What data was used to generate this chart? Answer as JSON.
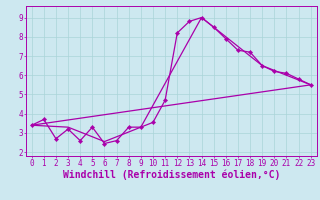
{
  "xlabel": "Windchill (Refroidissement éolien,°C)",
  "bg_color": "#cde8f0",
  "line_color": "#aa00aa",
  "xlim": [
    -0.5,
    23.5
  ],
  "ylim": [
    1.8,
    9.6
  ],
  "xticks": [
    0,
    1,
    2,
    3,
    4,
    5,
    6,
    7,
    8,
    9,
    10,
    11,
    12,
    13,
    14,
    15,
    16,
    17,
    18,
    19,
    20,
    21,
    22,
    23
  ],
  "yticks": [
    2,
    3,
    4,
    5,
    6,
    7,
    8,
    9
  ],
  "line0_x": [
    0,
    1,
    2,
    3,
    4,
    5,
    6,
    7,
    8,
    9,
    10,
    11,
    12,
    13,
    14,
    15,
    16,
    17,
    18,
    19,
    20,
    21,
    22,
    23
  ],
  "line0_y": [
    3.4,
    3.7,
    2.7,
    3.2,
    2.6,
    3.3,
    2.45,
    2.6,
    3.3,
    3.3,
    3.55,
    4.7,
    8.2,
    8.8,
    9.0,
    8.5,
    7.9,
    7.3,
    7.2,
    6.5,
    6.2,
    6.1,
    5.8,
    5.5
  ],
  "line1_x": [
    0,
    3,
    6,
    9,
    14,
    19,
    23
  ],
  "line1_y": [
    3.4,
    3.3,
    2.55,
    3.3,
    9.0,
    6.5,
    5.5
  ],
  "line2_x": [
    0,
    23
  ],
  "line2_y": [
    3.4,
    5.5
  ],
  "grid_color": "#aad4d8",
  "tick_fontsize": 5.5,
  "xlabel_fontsize": 7.0,
  "marker_size": 2.2,
  "linewidth": 0.9
}
